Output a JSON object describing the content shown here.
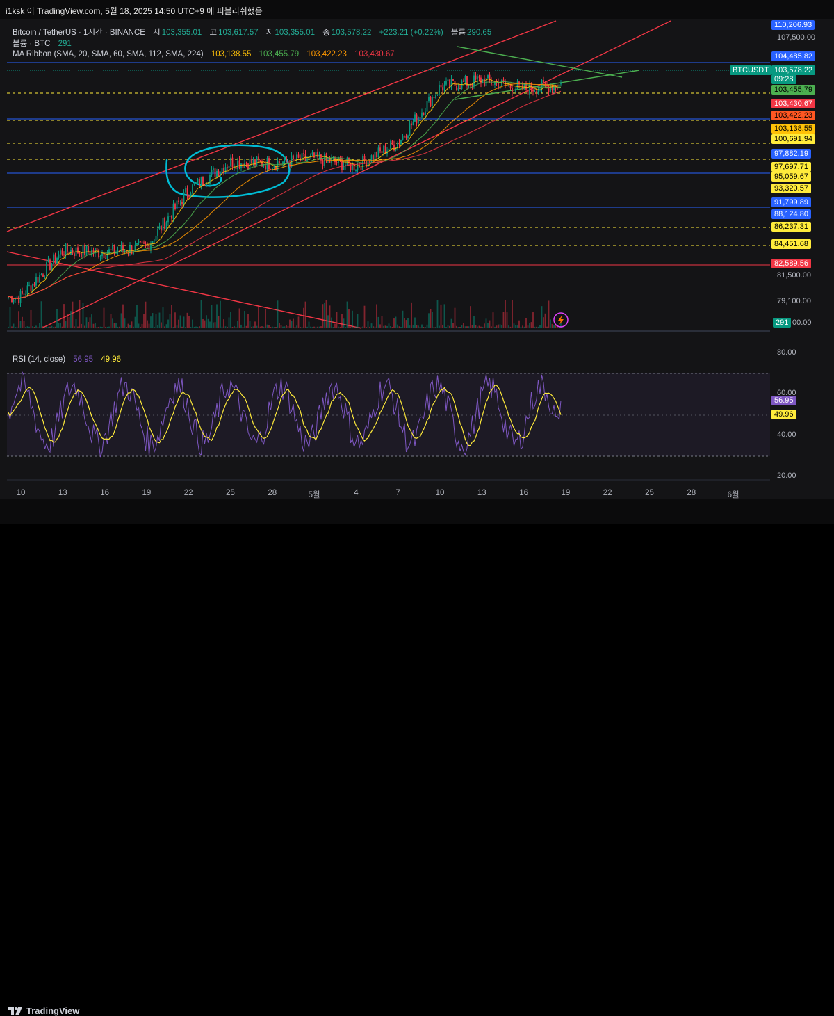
{
  "header": {
    "caption": "i1ksk 이 TradingView.com, 5월 18, 2025 14:50 UTC+9 에 퍼블리쉬했음"
  },
  "legend": {
    "symbol": "Bitcoin / TetherUS · 1시간 · BINANCE",
    "o_label": "시",
    "o": "103,355.01",
    "h_label": "고",
    "h": "103,617.57",
    "l_label": "저",
    "l": "103,355.01",
    "c_label": "종",
    "c": "103,578.22",
    "chg": "+223.21 (+0.22%)",
    "vol_label": "볼륨",
    "vol": "290.65",
    "volume_line": "볼륨 · BTC",
    "volume_val": "291",
    "ma_line": "MA Ribbon (SMA, 20, SMA, 60, SMA, 112, SMA, 224)",
    "ma_vals": [
      "103,138.55",
      "103,455.79",
      "103,422.23",
      "103,430.67"
    ]
  },
  "rsi_legend": {
    "label": "RSI (14, close)",
    "v1": "56.95",
    "v2": "49.96"
  },
  "axis_ticks": {
    "price": [
      "107,500.00",
      "81,500.00",
      "79,100.00",
      "00.00"
    ],
    "rsi": [
      "80.00",
      "60.00",
      "40.00",
      "20.00"
    ]
  },
  "price_labels": [
    {
      "text": "110,206.93",
      "bg": "#2962ff",
      "fg": "#ffffff"
    },
    {
      "text": "104,485.82",
      "bg": "#2962ff",
      "fg": "#ffffff"
    },
    {
      "text": "BTCUSDT",
      "bg": "#089981",
      "fg": "#ffffff"
    },
    {
      "text": "103,578.22",
      "bg": "#089981",
      "fg": "#ffffff"
    },
    {
      "text": "09:28",
      "bg": "#089981",
      "fg": "#ffffff"
    },
    {
      "text": "103,455.79",
      "bg": "#4caf50",
      "fg": "#000000"
    },
    {
      "text": "103,430.67",
      "bg": "#f23645",
      "fg": "#ffffff"
    },
    {
      "text": "103,422.23",
      "bg": "#ff5722",
      "fg": "#000000"
    },
    {
      "text": "103,138.55",
      "bg": "#ffc107",
      "fg": "#000000"
    },
    {
      "text": "100,691.94",
      "bg": "#ffeb3b",
      "fg": "#000000"
    },
    {
      "text": "97,882.19",
      "bg": "#2962ff",
      "fg": "#ffffff"
    },
    {
      "text": "97,697.71",
      "bg": "#ffeb3b",
      "fg": "#000000"
    },
    {
      "text": "95,059.67",
      "bg": "#ffeb3b",
      "fg": "#000000"
    },
    {
      "text": "93,320.57",
      "bg": "#ffeb3b",
      "fg": "#000000"
    },
    {
      "text": "91,799.89",
      "bg": "#2962ff",
      "fg": "#ffffff"
    },
    {
      "text": "88,124.80",
      "bg": "#2962ff",
      "fg": "#ffffff"
    },
    {
      "text": "86,237.31",
      "bg": "#ffeb3b",
      "fg": "#000000"
    },
    {
      "text": "84,451.68",
      "bg": "#ffeb3b",
      "fg": "#000000"
    },
    {
      "text": "82,589.56",
      "bg": "#f23645",
      "fg": "#ffffff"
    },
    {
      "text": "291",
      "bg": "#089981",
      "fg": "#ffffff"
    },
    {
      "text": "56.95",
      "bg": "#7e57c2",
      "fg": "#ffffff"
    },
    {
      "text": "49.96",
      "bg": "#ffeb3b",
      "fg": "#000000"
    }
  ],
  "x_axis": [
    "10",
    "13",
    "16",
    "19",
    "22",
    "25",
    "28",
    "5월",
    "4",
    "7",
    "10",
    "13",
    "16",
    "19",
    "22",
    "25",
    "28",
    "6월"
  ],
  "footer": {
    "brand": "TradingView"
  },
  "chart_data": {
    "type": "line",
    "interval": "1시간",
    "series": [
      {
        "name": "BTCUSDT",
        "role": "price",
        "x": [
          "10",
          "13",
          "16",
          "19",
          "22",
          "25",
          "28",
          "5월",
          "4",
          "7",
          "10",
          "13",
          "16",
          "19"
        ],
        "values": [
          79600,
          84800,
          84600,
          85200,
          91600,
          94800,
          94600,
          95200,
          94300,
          97000,
          103200,
          104000,
          103000,
          103578
        ]
      }
    ],
    "rsi": {
      "period": 14,
      "last": 56.95,
      "signal": 49.96,
      "bands": [
        70,
        30
      ]
    },
    "horizontal_levels": [
      110206.93,
      104485.82,
      100691.94,
      97882.19,
      97697.71,
      95059.67,
      93320.57,
      91799.89,
      88124.8,
      86237.31,
      84451.68,
      82589.56
    ],
    "colors": {
      "up": "#089981",
      "down": "#f23645",
      "ma20": "#ffc107",
      "ma60": "#4caf50",
      "ma112": "#ff9800",
      "ma224": "#f23645",
      "rsi": "#7e57c2",
      "rsi_ma": "#ffeb3b",
      "channel": "#f23645",
      "triangle": "#4caf50",
      "annotation": "#00bcd4"
    }
  }
}
